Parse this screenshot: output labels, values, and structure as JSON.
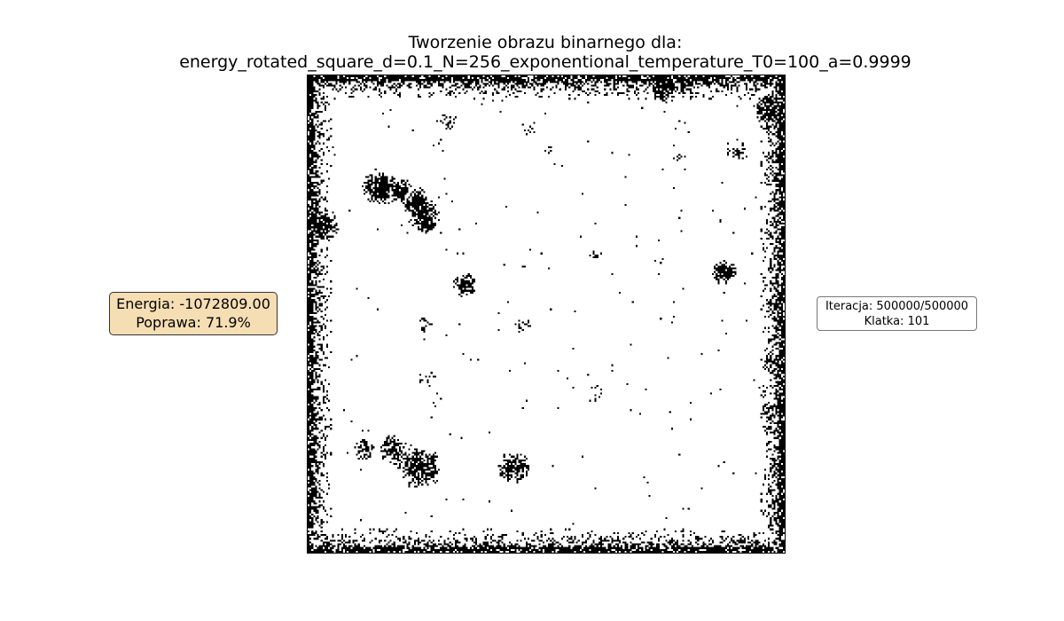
{
  "figure": {
    "title_line_1": "Tworzenie obrazu binarnego dla:",
    "title_line_2": "energy_rotated_square_d=0.1_N=256_exponentional_temperature_T0=100_a=0.9999"
  },
  "energy_box": {
    "energy_text": "Energia: -1072809.00",
    "improvement_text": "Poprawa: 71.9%",
    "background_color": "#f5deb3"
  },
  "iteration_box": {
    "iteration_text": "Iteracja: 500000/500000",
    "frame_text": "Klatka: 101"
  },
  "binary_image": {
    "grid_size": 256,
    "foreground_color": "#000000",
    "background_color": "#ffffff"
  }
}
